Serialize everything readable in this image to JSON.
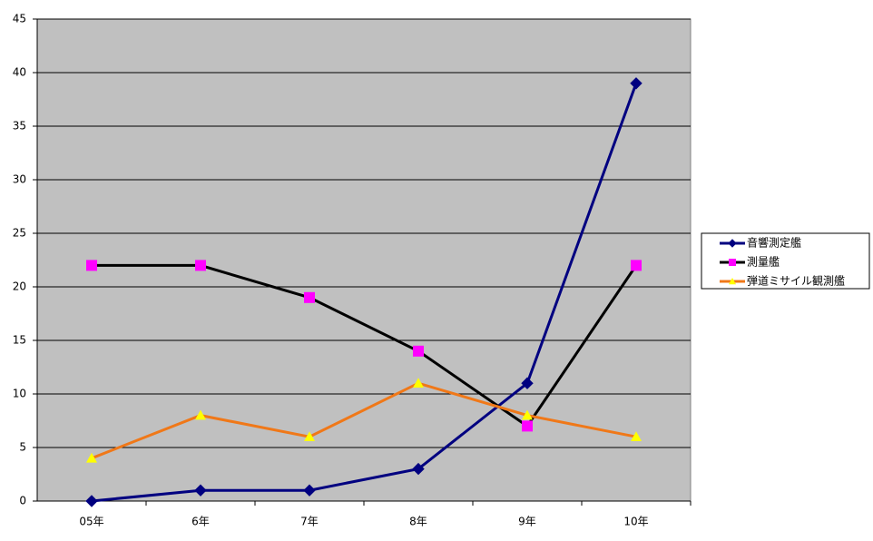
{
  "chart_data": {
    "type": "line",
    "categories": [
      "05年",
      "6年",
      "7年",
      "8年",
      "9年",
      "10年"
    ],
    "series": [
      {
        "name": "音響測定艦",
        "color": "#000080",
        "marker_color": "#000080",
        "marker": "diamond",
        "values": [
          0,
          1,
          1,
          3,
          11,
          39
        ]
      },
      {
        "name": "測量艦",
        "color": "#000000",
        "marker_color": "#ff00ff",
        "marker": "square",
        "values": [
          22,
          22,
          19,
          14,
          7,
          22
        ]
      },
      {
        "name": "弾道ミサイル観測艦",
        "color": "#f07818",
        "marker_color": "#ffff00",
        "marker": "triangle",
        "values": [
          4,
          8,
          6,
          11,
          8,
          6
        ]
      }
    ],
    "ylim": [
      0,
      45
    ],
    "yticks": [
      0,
      5,
      10,
      15,
      20,
      25,
      30,
      35,
      40,
      45
    ],
    "grid": true,
    "plot_background": "#c0c0c0",
    "legend": "right"
  }
}
